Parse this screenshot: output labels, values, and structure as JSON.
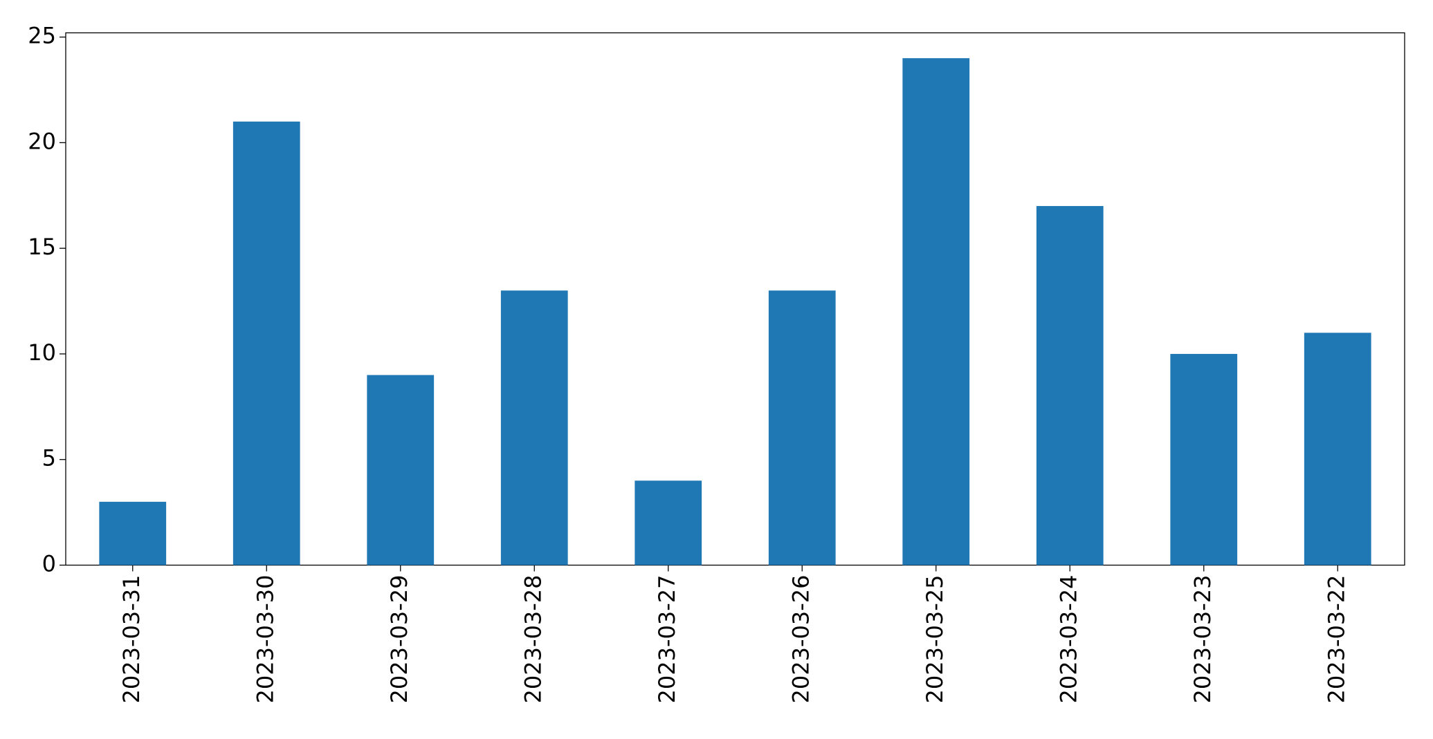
{
  "chart_data": {
    "type": "bar",
    "categories": [
      "2023-03-31",
      "2023-03-30",
      "2023-03-29",
      "2023-03-28",
      "2023-03-27",
      "2023-03-26",
      "2023-03-25",
      "2023-03-24",
      "2023-03-23",
      "2023-03-22"
    ],
    "values": [
      3,
      21,
      9,
      13,
      4,
      13,
      24,
      17,
      10,
      11
    ],
    "color": "#1f77b4",
    "ylim": [
      0,
      25.2
    ],
    "yticks": [
      0,
      5,
      10,
      15,
      20,
      25
    ],
    "grid": false
  }
}
